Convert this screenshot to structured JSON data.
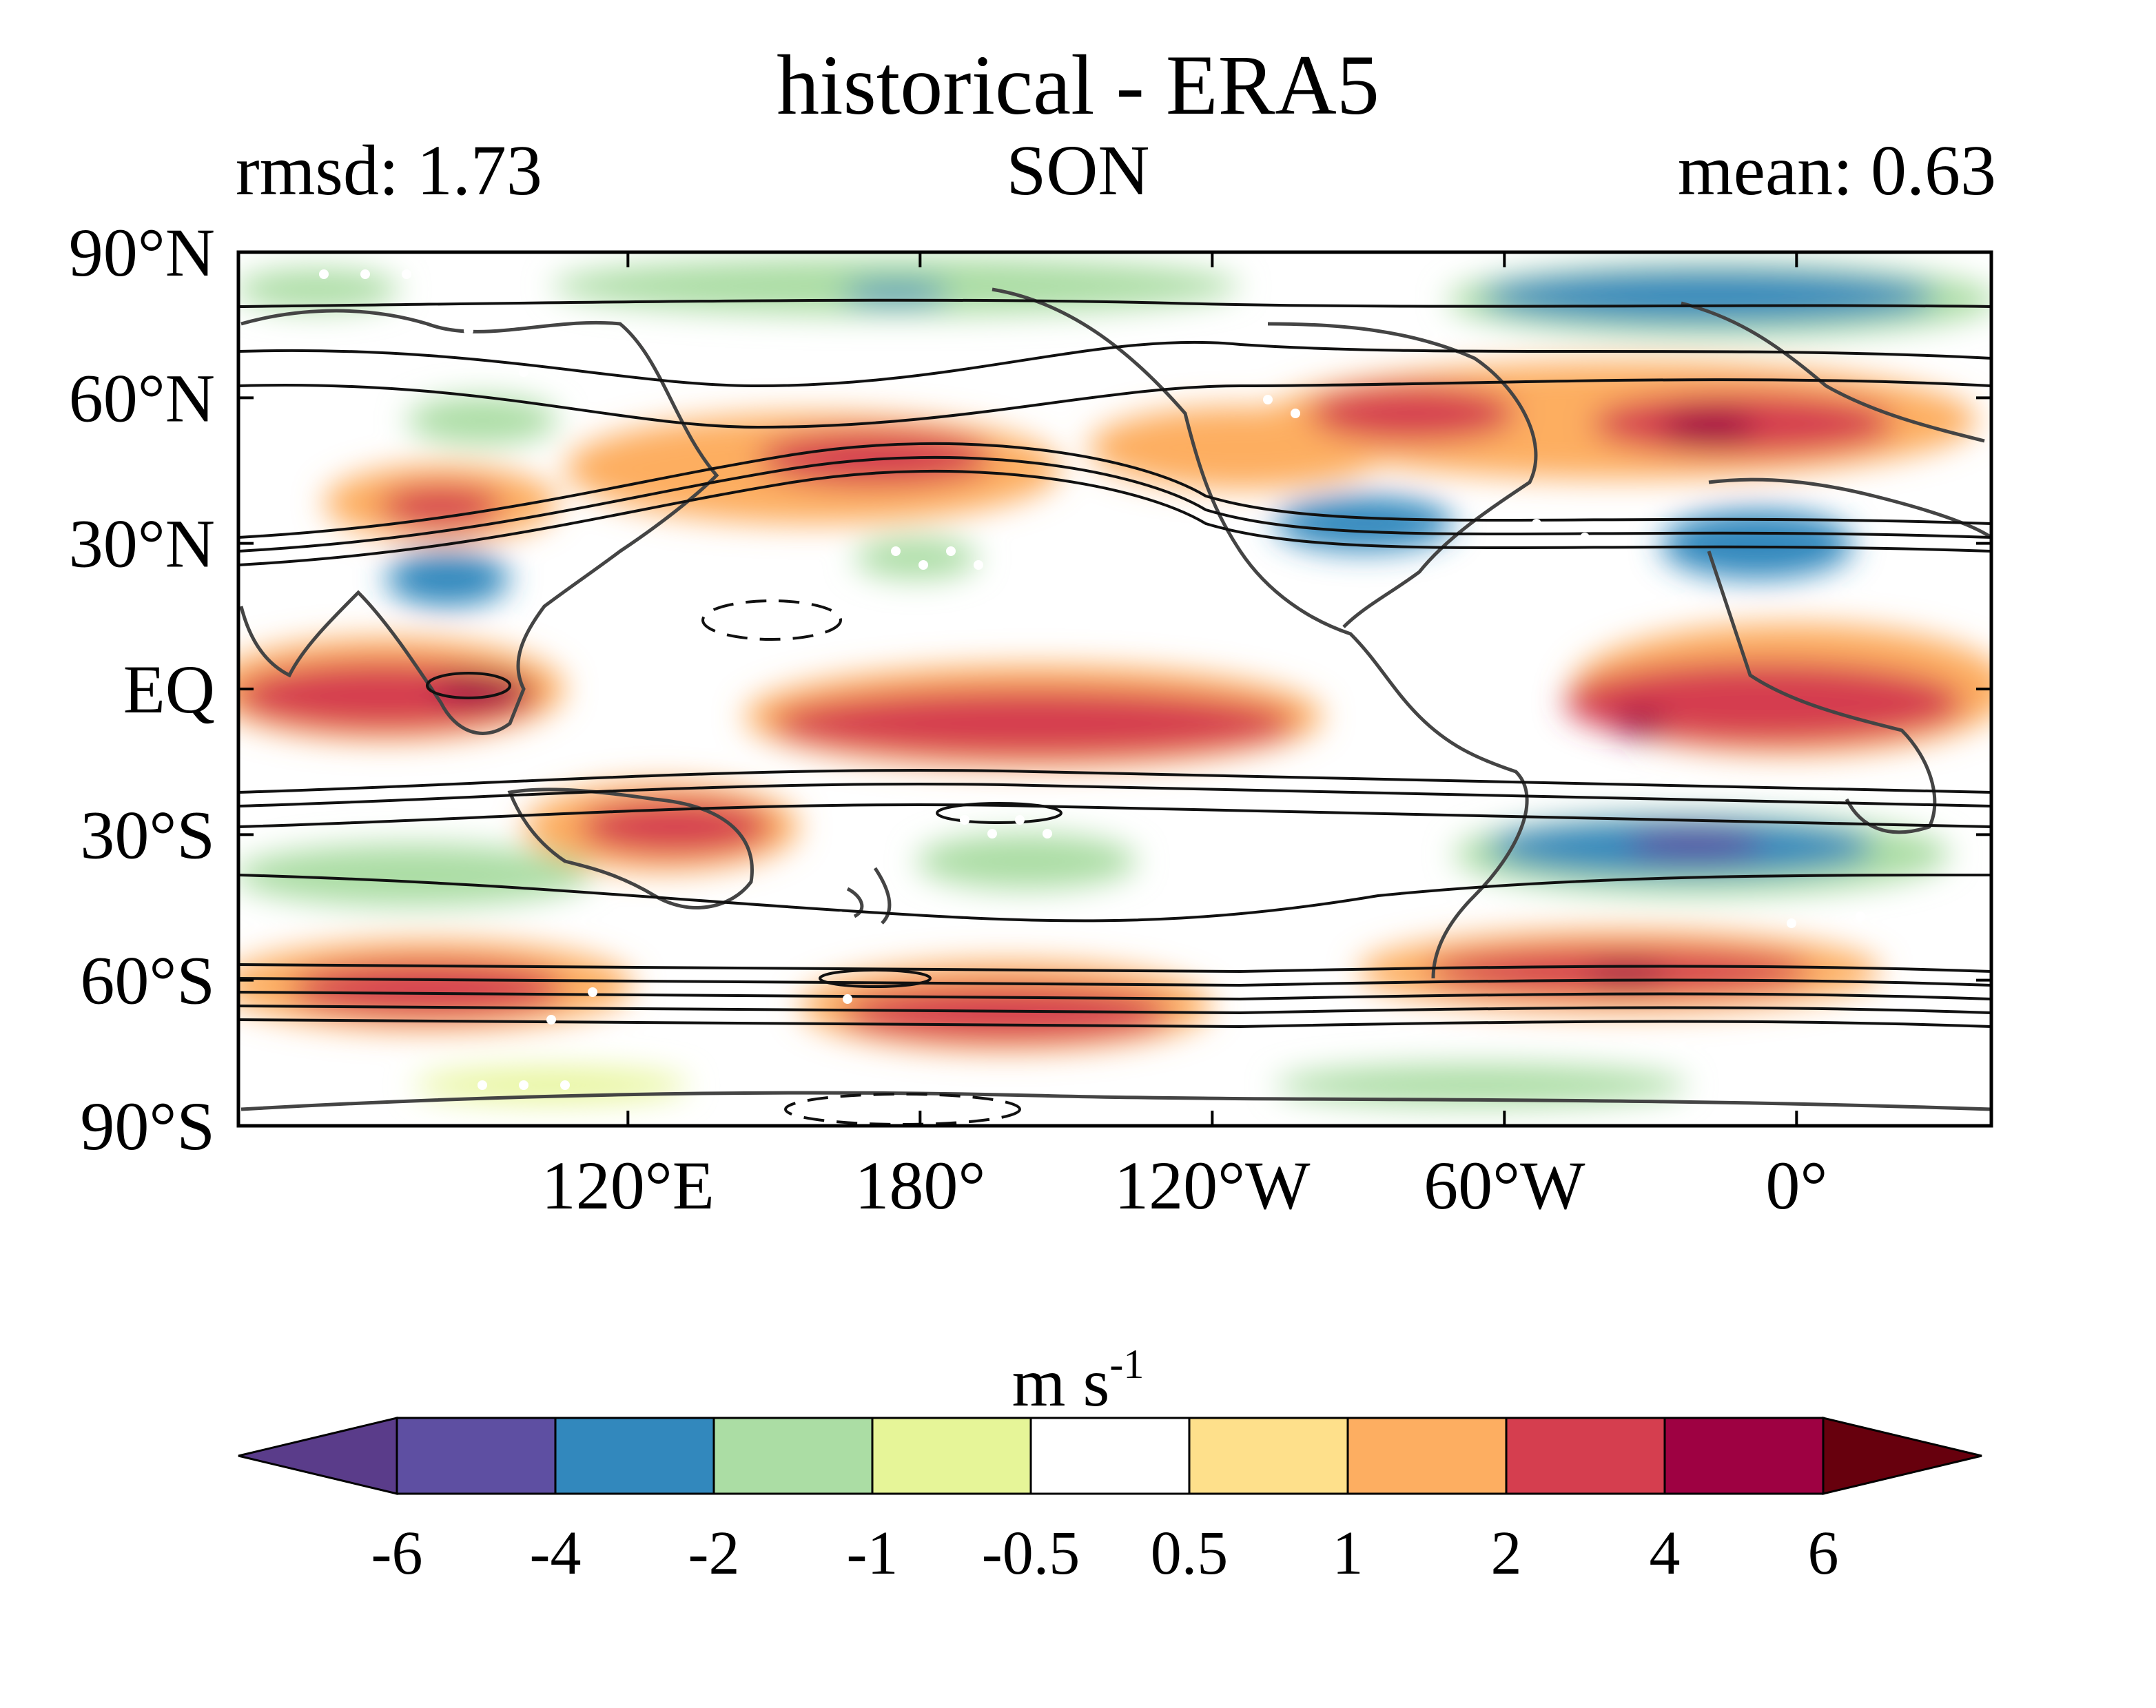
{
  "figure": {
    "title": "historical - ERA5",
    "left_stat": "rmsd: 1.73",
    "season": "SON",
    "right_stat": "mean: 0.63"
  },
  "map": {
    "lat_labels": [
      "90°N",
      "60°N",
      "30°N",
      "EQ",
      "30°S",
      "60°S",
      "90°S"
    ],
    "lat_values": [
      90,
      60,
      30,
      0,
      -30,
      -60,
      -90
    ],
    "lon_labels": [
      "120°E",
      "180°",
      "120°W",
      "60°W",
      "0°"
    ],
    "lon_values": [
      120,
      180,
      240,
      300,
      360
    ],
    "lon_range": [
      40,
      400
    ],
    "lat_range": [
      -90,
      90
    ]
  },
  "colorbar": {
    "units_base": "m s",
    "units_exp": "-1",
    "tick_labels": [
      "-6",
      "-4",
      "-2",
      "-1",
      "-0.5",
      "0.5",
      "1",
      "2",
      "4",
      "6"
    ],
    "colors": [
      "#5e4fa2",
      "#3288bd",
      "#abdda4",
      "#e6f598",
      "#ffffff",
      "#fee08b",
      "#fdae61",
      "#d53e4f",
      "#9e0142"
    ],
    "extend_low_color": "#5a3c8a",
    "extend_high_color": "#67000d"
  }
}
